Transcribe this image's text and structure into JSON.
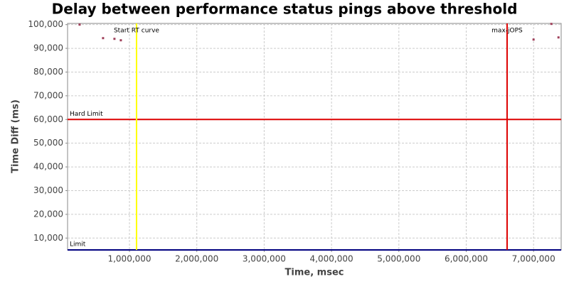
{
  "chart_data": {
    "type": "scatter",
    "title": "Delay between performance status pings above threshold",
    "x_label": "Time, msec",
    "y_label": "Time Diff (ms)",
    "xlim": [
      81000,
      7410000
    ],
    "ylim": [
      5000,
      100500
    ],
    "xticks": [
      {
        "value": 1000000,
        "label": "1,000,000"
      },
      {
        "value": 2000000,
        "label": "2,000,000"
      },
      {
        "value": 3000000,
        "label": "3,000,000"
      },
      {
        "value": 4000000,
        "label": "4,000,000"
      },
      {
        "value": 5000000,
        "label": "5,000,000"
      },
      {
        "value": 6000000,
        "label": "6,000,000"
      },
      {
        "value": 7000000,
        "label": "7,000,000"
      }
    ],
    "yticks": [
      {
        "value": 10000,
        "label": "10,000"
      },
      {
        "value": 20000,
        "label": "20,000"
      },
      {
        "value": 30000,
        "label": "30,000"
      },
      {
        "value": 40000,
        "label": "40,000"
      },
      {
        "value": 50000,
        "label": "50,000"
      },
      {
        "value": 60000,
        "label": "60,000"
      },
      {
        "value": 70000,
        "label": "70,000"
      },
      {
        "value": 80000,
        "label": "80,000"
      },
      {
        "value": 90000,
        "label": "90,000"
      },
      {
        "value": 100000,
        "label": "100,000"
      }
    ],
    "grid": true,
    "series": [
      {
        "color": "#a0405a",
        "x": [
          260000,
          608000,
          777000,
          872000,
          7000000,
          7264000,
          7370000
        ],
        "values": [
          100000,
          94300,
          94000,
          93400,
          93700,
          100300,
          94600
        ]
      }
    ],
    "x_markers": [
      {
        "label": "Start RT curve",
        "value": 1105000,
        "color": "#ffff00"
      },
      {
        "label": "max-jOPS",
        "value": 6607000,
        "color": "#dd0000"
      }
    ],
    "y_markers": [
      {
        "label": "Hard Limit",
        "value": 60000,
        "color": "#dd0000"
      },
      {
        "label": "Limit",
        "value": 5000,
        "color": "#000080"
      }
    ]
  }
}
